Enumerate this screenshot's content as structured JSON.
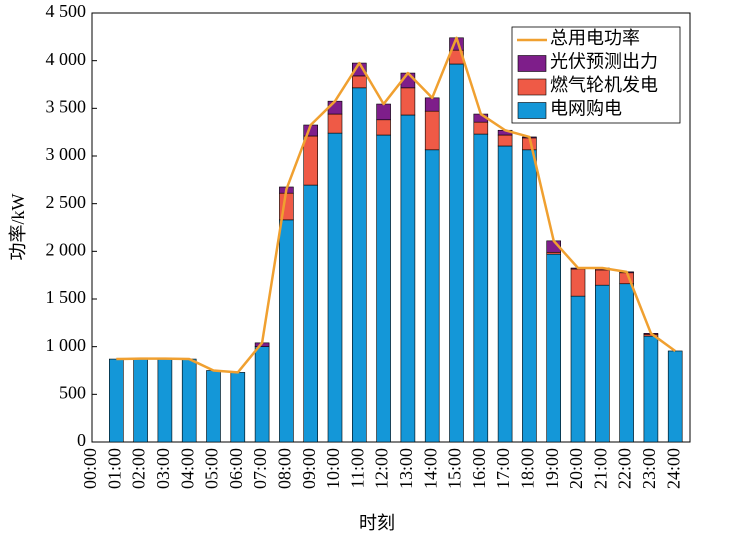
{
  "chart_data": {
    "type": "bar",
    "y_label": "功率/kW",
    "x_label": "时刻",
    "categories": [
      "00:00",
      "01:00",
      "02:00",
      "03:00",
      "04:00",
      "05:00",
      "06:00",
      "07:00",
      "08:00",
      "09:00",
      "10:00",
      "11:00",
      "12:00",
      "13:00",
      "14:00",
      "15:00",
      "16:00",
      "17:00",
      "18:00",
      "19:00",
      "20:00",
      "21:00",
      "22:00",
      "23:00",
      "24:00"
    ],
    "series": [
      {
        "name": "电网购电",
        "color": "#1497d8",
        "type": "bar",
        "values": [
          null,
          870,
          870,
          870,
          870,
          750,
          730,
          1000,
          2330,
          2695,
          3240,
          3715,
          3220,
          3430,
          3065,
          3965,
          3230,
          3105,
          3065,
          1970,
          1530,
          1645,
          1660,
          1110,
          955
        ]
      },
      {
        "name": "燃气轮机发电",
        "color": "#ef5a46",
        "type": "bar",
        "values": [
          null,
          0,
          0,
          0,
          0,
          0,
          0,
          0,
          280,
          515,
          200,
          125,
          160,
          285,
          405,
          145,
          125,
          115,
          125,
          20,
          285,
          160,
          115,
          20,
          0
        ]
      },
      {
        "name": "光伏预测出力",
        "color": "#7e1e8a",
        "type": "bar",
        "values": [
          null,
          0,
          0,
          0,
          0,
          0,
          0,
          40,
          65,
          115,
          135,
          135,
          165,
          155,
          140,
          130,
          85,
          50,
          10,
          120,
          10,
          20,
          10,
          10,
          0
        ]
      },
      {
        "name": "总用电功率",
        "color": "#f0a030",
        "type": "line",
        "values": [
          null,
          870,
          875,
          875,
          870,
          750,
          730,
          1040,
          2650,
          3325,
          3575,
          3975,
          3545,
          3870,
          3610,
          4240,
          3440,
          3270,
          3200,
          2110,
          1825,
          1825,
          1785,
          1140,
          955
        ]
      }
    ],
    "ylim": [
      0,
      4500
    ],
    "yticks": [
      0,
      500,
      {
        "value": 1000,
        "label": "1 000"
      },
      {
        "value": 1500,
        "label": "1 500"
      },
      {
        "value": 2000,
        "label": "2 000"
      },
      {
        "value": 2500,
        "label": "2 500"
      },
      {
        "value": 3000,
        "label": "3 000"
      },
      {
        "value": 3500,
        "label": "3 500"
      },
      {
        "value": 4000,
        "label": "4 000"
      },
      {
        "value": 4500,
        "label": "4 500"
      }
    ],
    "legend": "upper right"
  }
}
